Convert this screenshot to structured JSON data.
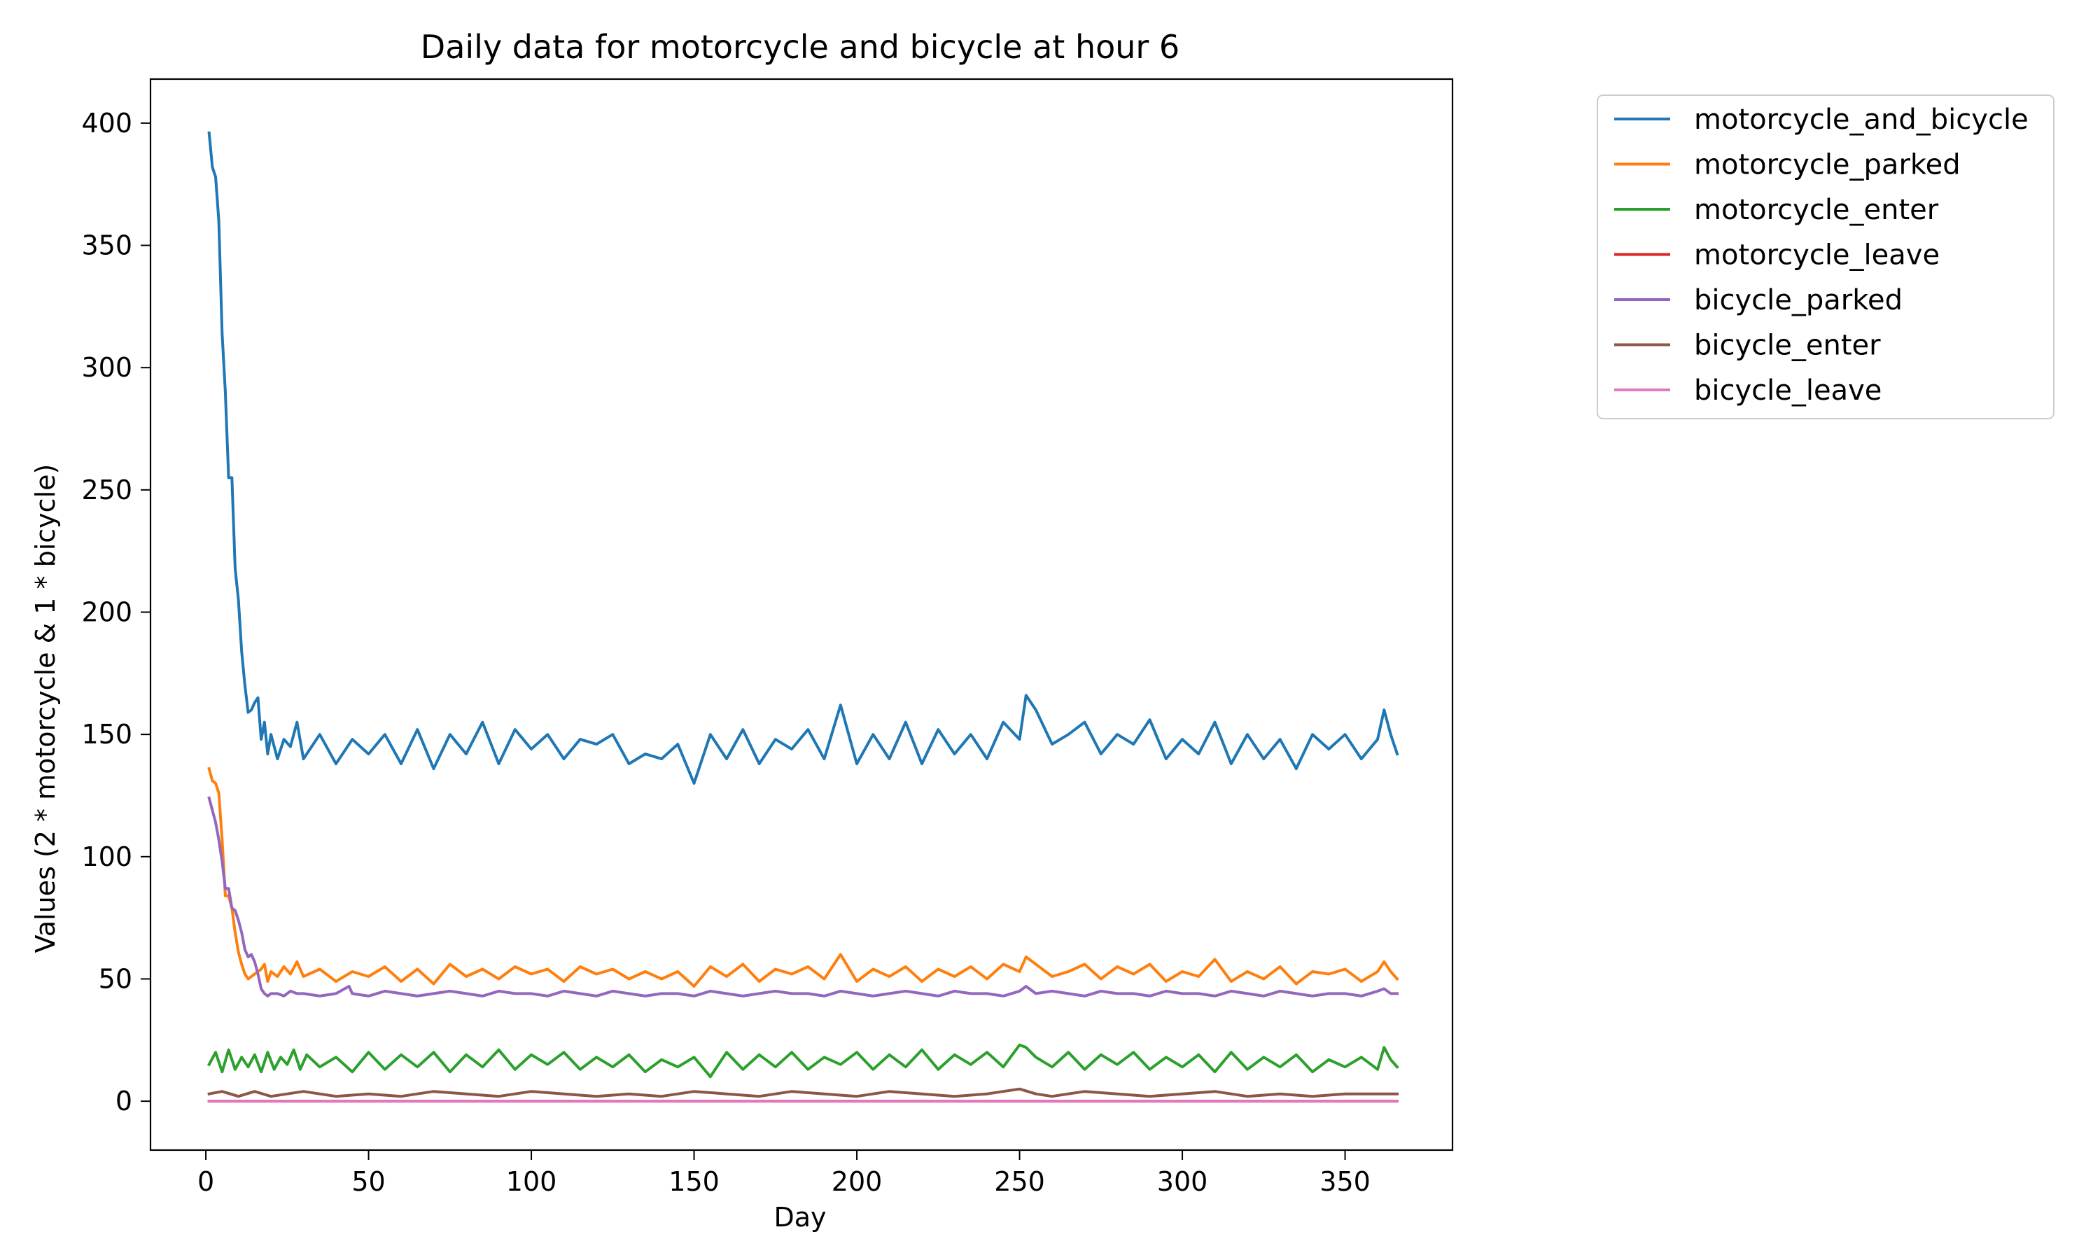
{
  "chart_data": {
    "type": "line",
    "title": "Daily data for motorcycle and bicycle at hour 6",
    "xlabel": "Day",
    "ylabel": "Values (2 * motorcycle & 1 * bicycle)",
    "xlim": [
      -17,
      383
    ],
    "ylim": [
      -20,
      418
    ],
    "xticks": [
      0,
      50,
      100,
      150,
      200,
      250,
      300,
      350
    ],
    "yticks": [
      0,
      50,
      100,
      150,
      200,
      250,
      300,
      350,
      400
    ],
    "grid": false,
    "legend_position": "outside-top-right",
    "series": [
      {
        "name": "motorcycle_and_bicycle",
        "color": "#1f77b4",
        "x": [
          1,
          2,
          3,
          4,
          5,
          6,
          7,
          8,
          9,
          10,
          11,
          12,
          13,
          14,
          15,
          16,
          17,
          18,
          19,
          20,
          22,
          24,
          26,
          28,
          30,
          35,
          40,
          45,
          50,
          55,
          60,
          65,
          70,
          75,
          80,
          85,
          90,
          95,
          100,
          105,
          110,
          115,
          120,
          125,
          130,
          135,
          140,
          145,
          150,
          155,
          160,
          165,
          170,
          175,
          180,
          185,
          190,
          195,
          200,
          205,
          210,
          215,
          220,
          225,
          230,
          235,
          240,
          245,
          250,
          252,
          255,
          260,
          265,
          270,
          275,
          280,
          285,
          290,
          295,
          300,
          305,
          310,
          315,
          320,
          325,
          330,
          335,
          340,
          345,
          350,
          355,
          360,
          362,
          364,
          366
        ],
        "y": [
          396,
          382,
          378,
          360,
          314,
          290,
          255,
          255,
          218,
          205,
          184,
          170,
          159,
          160,
          163,
          165,
          148,
          155,
          142,
          150,
          140,
          148,
          145,
          155,
          140,
          150,
          138,
          148,
          142,
          150,
          138,
          152,
          136,
          150,
          142,
          155,
          138,
          152,
          144,
          150,
          140,
          148,
          146,
          150,
          138,
          142,
          140,
          146,
          130,
          150,
          140,
          152,
          138,
          148,
          144,
          152,
          140,
          162,
          138,
          150,
          140,
          155,
          138,
          152,
          142,
          150,
          140,
          155,
          148,
          166,
          160,
          146,
          150,
          155,
          142,
          150,
          146,
          156,
          140,
          148,
          142,
          155,
          138,
          150,
          140,
          148,
          136,
          150,
          144,
          150,
          140,
          148,
          160,
          150,
          142
        ]
      },
      {
        "name": "motorcycle_parked",
        "color": "#ff7f0e",
        "x": [
          1,
          2,
          3,
          4,
          5,
          6,
          7,
          8,
          9,
          10,
          11,
          12,
          13,
          14,
          15,
          16,
          17,
          18,
          19,
          20,
          22,
          24,
          26,
          28,
          30,
          35,
          40,
          45,
          50,
          55,
          60,
          65,
          70,
          75,
          80,
          85,
          90,
          95,
          100,
          105,
          110,
          115,
          120,
          125,
          130,
          135,
          140,
          145,
          150,
          155,
          160,
          165,
          170,
          175,
          180,
          185,
          190,
          195,
          200,
          205,
          210,
          215,
          220,
          225,
          230,
          235,
          240,
          245,
          250,
          252,
          255,
          260,
          265,
          270,
          275,
          280,
          285,
          290,
          295,
          300,
          305,
          310,
          315,
          320,
          325,
          330,
          335,
          340,
          345,
          350,
          355,
          360,
          362,
          364,
          366
        ],
        "y": [
          136,
          131,
          130,
          126,
          107,
          84,
          84,
          79,
          69,
          61,
          56,
          52,
          50,
          51,
          52,
          53,
          54,
          56,
          49,
          53,
          51,
          55,
          52,
          57,
          51,
          54,
          49,
          53,
          51,
          55,
          49,
          54,
          48,
          56,
          51,
          54,
          50,
          55,
          52,
          54,
          49,
          55,
          52,
          54,
          50,
          53,
          50,
          53,
          47,
          55,
          51,
          56,
          49,
          54,
          52,
          55,
          50,
          60,
          49,
          54,
          51,
          55,
          49,
          54,
          51,
          55,
          50,
          56,
          53,
          59,
          56,
          51,
          53,
          56,
          50,
          55,
          52,
          56,
          49,
          53,
          51,
          58,
          49,
          53,
          50,
          55,
          48,
          53,
          52,
          54,
          49,
          53,
          57,
          53,
          50
        ]
      },
      {
        "name": "motorcycle_enter",
        "color": "#2ca02c",
        "x": [
          1,
          3,
          5,
          7,
          9,
          11,
          13,
          15,
          17,
          19,
          21,
          23,
          25,
          27,
          29,
          31,
          35,
          40,
          45,
          50,
          55,
          60,
          65,
          70,
          75,
          80,
          85,
          90,
          95,
          100,
          105,
          110,
          115,
          120,
          125,
          130,
          135,
          140,
          145,
          150,
          155,
          160,
          165,
          170,
          175,
          180,
          185,
          190,
          195,
          200,
          205,
          210,
          215,
          220,
          225,
          230,
          235,
          240,
          245,
          250,
          252,
          255,
          260,
          265,
          270,
          275,
          280,
          285,
          290,
          295,
          300,
          305,
          310,
          315,
          320,
          325,
          330,
          335,
          340,
          345,
          350,
          355,
          360,
          362,
          364,
          366
        ],
        "y": [
          15,
          20,
          12,
          21,
          13,
          18,
          14,
          19,
          12,
          20,
          13,
          18,
          15,
          21,
          13,
          19,
          14,
          18,
          12,
          20,
          13,
          19,
          14,
          20,
          12,
          19,
          14,
          21,
          13,
          19,
          15,
          20,
          13,
          18,
          14,
          19,
          12,
          17,
          14,
          18,
          10,
          20,
          13,
          19,
          14,
          20,
          13,
          18,
          15,
          20,
          13,
          19,
          14,
          21,
          13,
          19,
          15,
          20,
          14,
          23,
          22,
          18,
          14,
          20,
          13,
          19,
          15,
          20,
          13,
          18,
          14,
          19,
          12,
          20,
          13,
          18,
          14,
          19,
          12,
          17,
          14,
          18,
          13,
          22,
          17,
          14
        ]
      },
      {
        "name": "motorcycle_leave",
        "color": "#d62728",
        "x": [
          1,
          366
        ],
        "y": [
          0,
          0
        ]
      },
      {
        "name": "bicycle_parked",
        "color": "#9467bd",
        "x": [
          1,
          2,
          3,
          4,
          5,
          6,
          7,
          8,
          9,
          10,
          11,
          12,
          13,
          14,
          15,
          16,
          17,
          18,
          19,
          20,
          22,
          24,
          26,
          28,
          30,
          35,
          40,
          44,
          45,
          50,
          55,
          60,
          65,
          70,
          75,
          80,
          85,
          90,
          95,
          100,
          105,
          110,
          115,
          120,
          125,
          130,
          135,
          140,
          145,
          150,
          155,
          160,
          165,
          170,
          175,
          180,
          185,
          190,
          195,
          200,
          205,
          210,
          215,
          220,
          225,
          230,
          235,
          240,
          245,
          250,
          252,
          255,
          260,
          265,
          270,
          275,
          280,
          285,
          290,
          295,
          300,
          305,
          310,
          315,
          320,
          325,
          330,
          335,
          340,
          345,
          350,
          355,
          360,
          362,
          364,
          366
        ],
        "y": [
          124,
          119,
          114,
          107,
          98,
          87,
          87,
          79,
          78,
          74,
          69,
          62,
          59,
          60,
          57,
          52,
          46,
          44,
          43,
          44,
          44,
          43,
          45,
          44,
          44,
          43,
          44,
          47,
          44,
          43,
          45,
          44,
          43,
          44,
          45,
          44,
          43,
          45,
          44,
          44,
          43,
          45,
          44,
          43,
          45,
          44,
          43,
          44,
          44,
          43,
          45,
          44,
          43,
          44,
          45,
          44,
          44,
          43,
          45,
          44,
          43,
          44,
          45,
          44,
          43,
          45,
          44,
          44,
          43,
          45,
          47,
          44,
          45,
          44,
          43,
          45,
          44,
          44,
          43,
          45,
          44,
          44,
          43,
          45,
          44,
          43,
          45,
          44,
          43,
          44,
          44,
          43,
          45,
          46,
          44,
          44
        ]
      },
      {
        "name": "bicycle_enter",
        "color": "#8c564b",
        "x": [
          1,
          5,
          10,
          15,
          20,
          25,
          30,
          40,
          50,
          60,
          70,
          80,
          90,
          100,
          110,
          120,
          130,
          140,
          150,
          160,
          170,
          180,
          190,
          200,
          210,
          220,
          230,
          240,
          250,
          255,
          260,
          270,
          280,
          290,
          300,
          310,
          320,
          330,
          340,
          350,
          360,
          366
        ],
        "y": [
          3,
          4,
          2,
          4,
          2,
          3,
          4,
          2,
          3,
          2,
          4,
          3,
          2,
          4,
          3,
          2,
          3,
          2,
          4,
          3,
          2,
          4,
          3,
          2,
          4,
          3,
          2,
          3,
          5,
          3,
          2,
          4,
          3,
          2,
          3,
          4,
          2,
          3,
          2,
          3,
          3,
          3
        ]
      },
      {
        "name": "bicycle_leave",
        "color": "#e377c2",
        "x": [
          1,
          366
        ],
        "y": [
          0,
          0
        ]
      }
    ]
  }
}
